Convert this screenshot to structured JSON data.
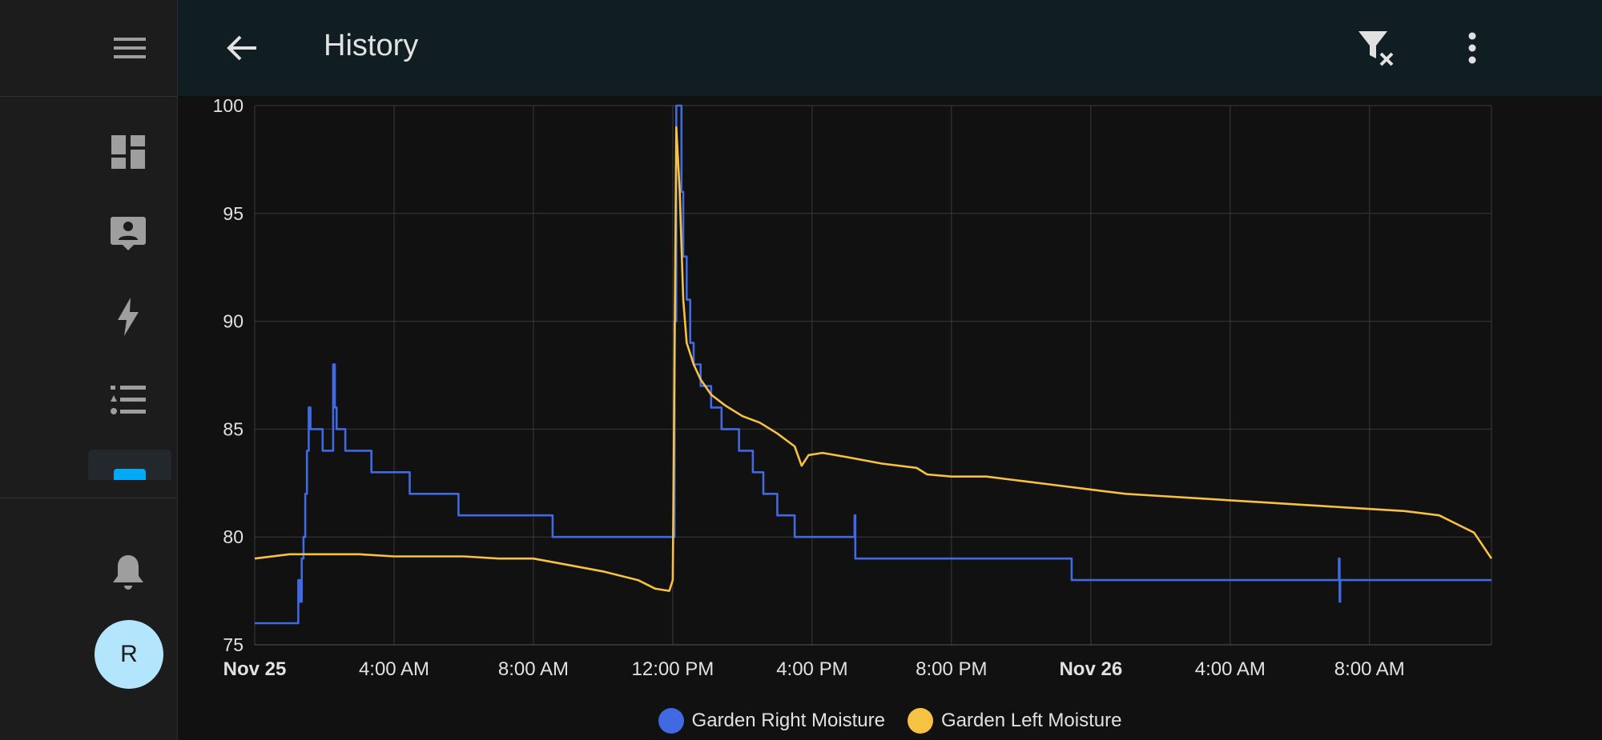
{
  "app": {
    "title": "History",
    "user_initial": "R"
  },
  "sidebar": {
    "items": [
      {
        "name": "menu-icon"
      },
      {
        "name": "dashboard-icon"
      },
      {
        "name": "map-person-icon"
      },
      {
        "name": "energy-icon"
      },
      {
        "name": "logbook-icon"
      },
      {
        "name": "history-icon"
      },
      {
        "name": "bell-icon"
      }
    ]
  },
  "header": {
    "actions": [
      "filter-remove-icon",
      "more-vertical-icon"
    ]
  },
  "colors": {
    "background": "#111111",
    "grid": "#3a3a3a",
    "series_right": "#4169e1",
    "series_left": "#f6c244",
    "accent": "#03a9f4"
  },
  "chart_data": {
    "type": "line",
    "ylim": [
      75,
      100
    ],
    "y_ticks": [
      "75",
      "80",
      "85",
      "90",
      "95",
      "100"
    ],
    "x_range_hours": [
      0,
      35.5
    ],
    "x_ticks": [
      {
        "label": "Nov 25",
        "hour": 0,
        "bold": true
      },
      {
        "label": "4:00 AM",
        "hour": 4
      },
      {
        "label": "8:00 AM",
        "hour": 8
      },
      {
        "label": "12:00 PM",
        "hour": 12
      },
      {
        "label": "4:00 PM",
        "hour": 16
      },
      {
        "label": "8:00 PM",
        "hour": 20
      },
      {
        "label": "Nov 26",
        "hour": 24,
        "bold": true
      },
      {
        "label": "4:00 AM",
        "hour": 28
      },
      {
        "label": "8:00 AM",
        "hour": 32
      }
    ],
    "series": [
      {
        "name": "Garden Right Moisture",
        "step": true,
        "points": [
          [
            0,
            76
          ],
          [
            1.2,
            76
          ],
          [
            1.25,
            78
          ],
          [
            1.3,
            77
          ],
          [
            1.35,
            79
          ],
          [
            1.4,
            80
          ],
          [
            1.45,
            82
          ],
          [
            1.5,
            84
          ],
          [
            1.55,
            86
          ],
          [
            1.6,
            85
          ],
          [
            1.9,
            85
          ],
          [
            1.95,
            84
          ],
          [
            2.2,
            84
          ],
          [
            2.25,
            88
          ],
          [
            2.3,
            86
          ],
          [
            2.35,
            85
          ],
          [
            2.5,
            85
          ],
          [
            2.6,
            84
          ],
          [
            3.3,
            84
          ],
          [
            3.35,
            83
          ],
          [
            4.4,
            83
          ],
          [
            4.45,
            82
          ],
          [
            5.8,
            82
          ],
          [
            5.85,
            81
          ],
          [
            8.5,
            81
          ],
          [
            8.55,
            80
          ],
          [
            12,
            80
          ],
          [
            12.05,
            90
          ],
          [
            12.1,
            100
          ],
          [
            12.2,
            100
          ],
          [
            12.25,
            96
          ],
          [
            12.3,
            93
          ],
          [
            12.4,
            91
          ],
          [
            12.5,
            89
          ],
          [
            12.6,
            88
          ],
          [
            12.8,
            87
          ],
          [
            13.1,
            86
          ],
          [
            13.4,
            85
          ],
          [
            13.9,
            84
          ],
          [
            14.3,
            83
          ],
          [
            14.6,
            82
          ],
          [
            15.0,
            81
          ],
          [
            15.5,
            80
          ],
          [
            17.2,
            80
          ],
          [
            17.22,
            81
          ],
          [
            17.24,
            79
          ],
          [
            23.4,
            79
          ],
          [
            23.45,
            78
          ],
          [
            31.1,
            78
          ],
          [
            31.12,
            79
          ],
          [
            31.14,
            77
          ],
          [
            31.16,
            78
          ],
          [
            35.5,
            78
          ]
        ]
      },
      {
        "name": "Garden Left Moisture",
        "step": false,
        "points": [
          [
            0,
            79
          ],
          [
            1,
            79.2
          ],
          [
            2,
            79.2
          ],
          [
            3,
            79.2
          ],
          [
            4,
            79.1
          ],
          [
            5,
            79.1
          ],
          [
            6,
            79.1
          ],
          [
            7,
            79.0
          ],
          [
            8,
            79.0
          ],
          [
            9,
            78.7
          ],
          [
            10,
            78.4
          ],
          [
            11,
            78.0
          ],
          [
            11.5,
            77.6
          ],
          [
            11.9,
            77.5
          ],
          [
            12.0,
            78
          ],
          [
            12.05,
            88
          ],
          [
            12.1,
            99
          ],
          [
            12.2,
            96
          ],
          [
            12.3,
            91
          ],
          [
            12.4,
            89
          ],
          [
            12.6,
            88
          ],
          [
            12.8,
            87.3
          ],
          [
            13.1,
            86.6
          ],
          [
            13.5,
            86.1
          ],
          [
            14,
            85.6
          ],
          [
            14.5,
            85.3
          ],
          [
            15,
            84.8
          ],
          [
            15.5,
            84.2
          ],
          [
            15.7,
            83.3
          ],
          [
            15.9,
            83.8
          ],
          [
            16.3,
            83.9
          ],
          [
            17,
            83.7
          ],
          [
            18,
            83.4
          ],
          [
            19,
            83.2
          ],
          [
            19.3,
            82.9
          ],
          [
            20,
            82.8
          ],
          [
            21,
            82.8
          ],
          [
            22,
            82.6
          ],
          [
            23,
            82.4
          ],
          [
            24,
            82.2
          ],
          [
            25,
            82.0
          ],
          [
            26,
            81.9
          ],
          [
            27,
            81.8
          ],
          [
            28,
            81.7
          ],
          [
            29,
            81.6
          ],
          [
            30,
            81.5
          ],
          [
            31,
            81.4
          ],
          [
            32,
            81.3
          ],
          [
            33,
            81.2
          ],
          [
            34,
            81.0
          ],
          [
            34.5,
            80.6
          ],
          [
            35,
            80.2
          ],
          [
            35.5,
            79.0
          ]
        ]
      }
    ]
  }
}
